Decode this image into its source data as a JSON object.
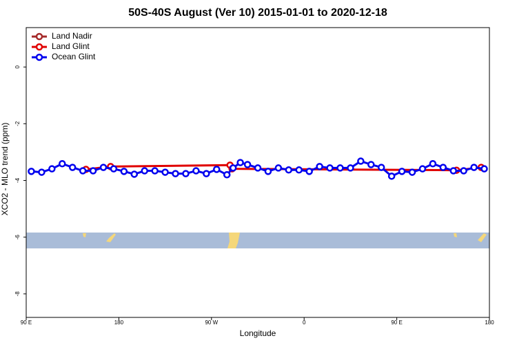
{
  "chart_data": {
    "type": "line",
    "title": "50S-40S August (Ver 10)   2015-01-01 to 2020-12-18",
    "x_label": "Longitude",
    "y_label": "XCO2 - MLO trend (ppm)",
    "xlim": [
      90,
      540
    ],
    "ylim": [
      -8.83,
      1.39
    ],
    "xticks": [
      {
        "value": 90,
        "label": "90 E"
      },
      {
        "value": 180,
        "label": "180"
      },
      {
        "value": 270,
        "label": "90 W"
      },
      {
        "value": 360,
        "label": "0"
      },
      {
        "value": 450,
        "label": "90 E"
      },
      {
        "value": 540,
        "label": "180"
      }
    ],
    "yticks": [
      0,
      -2,
      -4,
      -6,
      -8
    ],
    "legend": "top-left",
    "series": [
      {
        "name": "Land Nadir",
        "color": "#a52a2a",
        "x": [],
        "values": []
      },
      {
        "name": "Land Glint",
        "color": "#e00000",
        "x": [
          148,
          172,
          288,
          290,
          508,
          532
        ],
        "values": [
          -3.61,
          -3.51,
          -3.46,
          -3.59,
          -3.64,
          -3.54
        ]
      },
      {
        "name": "Ocean Glint",
        "color": "#0000ee",
        "x": [
          95,
          105,
          115,
          125,
          135,
          145,
          155,
          165,
          175,
          185,
          195,
          205,
          215,
          225,
          235,
          245,
          255,
          265,
          275,
          285,
          291,
          298,
          305,
          315,
          325,
          335,
          345,
          355,
          365,
          375,
          385,
          395,
          405,
          415,
          425,
          435,
          445,
          455,
          465,
          475,
          485,
          495,
          505,
          515,
          525,
          535
        ],
        "values": [
          -3.68,
          -3.71,
          -3.59,
          -3.41,
          -3.54,
          -3.66,
          -3.66,
          -3.54,
          -3.59,
          -3.68,
          -3.78,
          -3.66,
          -3.66,
          -3.71,
          -3.76,
          -3.76,
          -3.66,
          -3.76,
          -3.61,
          -3.8,
          -3.56,
          -3.37,
          -3.44,
          -3.56,
          -3.68,
          -3.56,
          -3.63,
          -3.63,
          -3.68,
          -3.51,
          -3.56,
          -3.56,
          -3.56,
          -3.32,
          -3.44,
          -3.54,
          -3.85,
          -3.68,
          -3.71,
          -3.59,
          -3.41,
          -3.54,
          -3.66,
          -3.66,
          -3.54,
          -3.59
        ]
      }
    ]
  }
}
